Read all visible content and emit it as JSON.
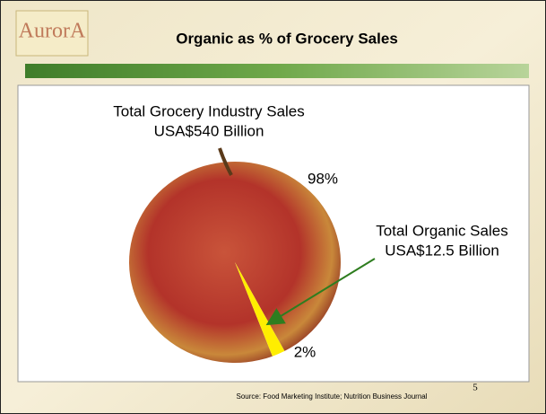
{
  "header": {
    "logo": "AurorA"
  },
  "chart_data": {
    "type": "pie",
    "title": "Organic as % of Grocery Sales",
    "values": [
      98,
      2
    ],
    "value_labels": [
      "98%",
      "2%"
    ],
    "colors": [
      "#c0392b",
      "#ffee00"
    ],
    "annotations": [
      "Total Grocery Industry Sales",
      "USA$540 Billion",
      "Total Organic Sales",
      "USA$12.5 Billion"
    ]
  },
  "footer": {
    "source": "Source: Food Marketing Institute; Nutrition Business Journal",
    "page_number": "5"
  }
}
